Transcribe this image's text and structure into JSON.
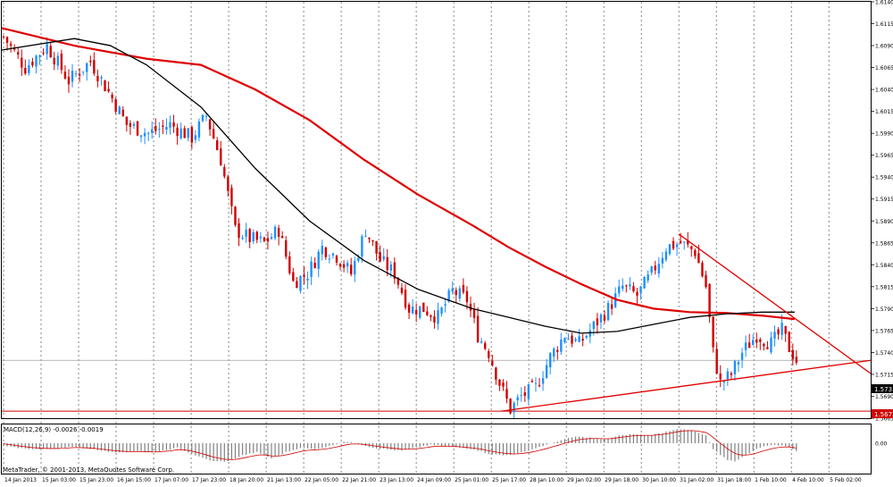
{
  "platform_label": "MetaTrader, © 2001-2013, MetaQuotes Software Corp.",
  "macd_label": "MACD(12,26,9) -0.0026 -0.0019",
  "price_bid_label": "1.5731",
  "price_low_label": "1.5673",
  "colors": {
    "background": "#ffffff",
    "frame": "#000000",
    "bull_candle": "#1e90ff",
    "bear_candle": "#d00000",
    "ma_fast": "#000000",
    "ma_slow": "#e00000",
    "trendline": "#e00000",
    "histogram": "#808080",
    "signal": "#d00000",
    "price_marker": "#d00000"
  },
  "chart_data": [
    {
      "type": "candlestick",
      "ylim": [
        1.5665,
        1.614
      ],
      "y_ticks": [
        "1.6140",
        "1.6115",
        "1.6090",
        "1.6065",
        "1.6040",
        "1.6015",
        "1.5990",
        "1.5965",
        "1.5940",
        "1.5915",
        "1.5890",
        "1.5865",
        "1.5840",
        "1.5815",
        "1.5790",
        "1.5765",
        "1.5740",
        "1.5715",
        "1.5690",
        "1.5665"
      ],
      "x_labels": [
        "14 Jan 2013",
        "15 Jan 03:00",
        "15 Jan 23:00",
        "16 Jan 15:00",
        "17 Jan 07:00",
        "17 Jan 23:00",
        "18 Jan 20:00",
        "21 Jan 13:00",
        "22 Jan 05:00",
        "22 Jan 21:00",
        "23 Jan 13:00",
        "24 Jan 09:00",
        "25 Jan 01:00",
        "25 Jan 17:00",
        "28 Jan 10:00",
        "29 Jan 02:00",
        "29 Jan 18:00",
        "30 Jan 10:00",
        "31 Jan 02:00",
        "31 Jan 18:00",
        "1 Feb 10:00",
        "4 Feb 10:00",
        "5 Feb 02:00"
      ],
      "close_path": [
        [
          0,
          1.61
        ],
        [
          6,
          1.6065
        ],
        [
          12,
          1.609
        ],
        [
          18,
          1.605
        ],
        [
          24,
          1.6072
        ],
        [
          30,
          1.603
        ],
        [
          34,
          1.6
        ],
        [
          40,
          1.599
        ],
        [
          46,
          1.6
        ],
        [
          52,
          1.5985
        ],
        [
          56,
          1.601
        ],
        [
          60,
          1.596
        ],
        [
          64,
          1.588
        ],
        [
          68,
          1.587
        ],
        [
          72,
          1.5865
        ],
        [
          76,
          1.588
        ],
        [
          80,
          1.582
        ],
        [
          84,
          1.583
        ],
        [
          88,
          1.586
        ],
        [
          92,
          1.585
        ],
        [
          96,
          1.583
        ],
        [
          100,
          1.588
        ],
        [
          104,
          1.5845
        ],
        [
          108,
          1.583
        ],
        [
          112,
          1.579
        ],
        [
          116,
          1.579
        ],
        [
          120,
          1.578
        ],
        [
          124,
          1.581
        ],
        [
          128,
          1.58
        ],
        [
          131,
          1.576
        ],
        [
          134,
          1.574
        ],
        [
          137,
          1.5705
        ],
        [
          140,
          1.5675
        ],
        [
          143,
          1.569
        ],
        [
          147,
          1.57
        ],
        [
          151,
          1.5735
        ],
        [
          155,
          1.576
        ],
        [
          159,
          1.575
        ],
        [
          163,
          1.577
        ],
        [
          167,
          1.579
        ],
        [
          171,
          1.5815
        ],
        [
          175,
          1.5805
        ],
        [
          179,
          1.583
        ],
        [
          183,
          1.586
        ],
        [
          187,
          1.5865
        ],
        [
          191,
          1.5855
        ],
        [
          194,
          1.5815
        ],
        [
          196,
          1.574
        ],
        [
          198,
          1.5705
        ],
        [
          201,
          1.5715
        ],
        [
          204,
          1.574
        ],
        [
          208,
          1.576
        ],
        [
          212,
          1.575
        ],
        [
          215,
          1.5765
        ],
        [
          217,
          1.5745
        ],
        [
          219,
          1.5731
        ]
      ],
      "ma_fast": [
        [
          0,
          1.6085
        ],
        [
          20,
          1.6098
        ],
        [
          30,
          1.609
        ],
        [
          40,
          1.6068
        ],
        [
          55,
          1.602
        ],
        [
          70,
          1.595
        ],
        [
          85,
          1.589
        ],
        [
          100,
          1.5845
        ],
        [
          115,
          1.5812
        ],
        [
          130,
          1.579
        ],
        [
          140,
          1.578
        ],
        [
          150,
          1.577
        ],
        [
          160,
          1.5762
        ],
        [
          170,
          1.5764
        ],
        [
          180,
          1.5772
        ],
        [
          190,
          1.578
        ],
        [
          200,
          1.5784
        ],
        [
          210,
          1.5786
        ],
        [
          219,
          1.5786
        ]
      ],
      "ma_slow": [
        [
          0,
          1.611
        ],
        [
          20,
          1.609
        ],
        [
          40,
          1.6075
        ],
        [
          55,
          1.6068
        ],
        [
          70,
          1.604
        ],
        [
          85,
          1.6005
        ],
        [
          100,
          1.596
        ],
        [
          115,
          1.592
        ],
        [
          130,
          1.5885
        ],
        [
          140,
          1.586
        ],
        [
          150,
          1.5838
        ],
        [
          160,
          1.5818
        ],
        [
          170,
          1.58
        ],
        [
          180,
          1.579
        ],
        [
          190,
          1.5786
        ],
        [
          200,
          1.5785
        ],
        [
          210,
          1.5782
        ],
        [
          219,
          1.5778
        ]
      ],
      "trendlines": [
        {
          "from": [
            187,
            1.5875
          ],
          "to": [
            240,
            1.5716
          ]
        },
        {
          "from": [
            138,
            1.5673
          ],
          "to": [
            240,
            1.5731
          ]
        }
      ],
      "bid_level": 1.5731,
      "low_level": 1.5673,
      "grid": "vertical-dashed"
    },
    {
      "type": "histogram",
      "title": "MACD(12,26,9) -0.0026 -0.0019",
      "y_ticks": [
        "0.00"
      ],
      "macd_path": [
        [
          0,
          -0.001
        ],
        [
          6,
          -0.0018
        ],
        [
          12,
          -0.002
        ],
        [
          18,
          -0.0012
        ],
        [
          24,
          -0.0018
        ],
        [
          30,
          -0.003
        ],
        [
          36,
          -0.0028
        ],
        [
          42,
          -0.003
        ],
        [
          48,
          -0.0015
        ],
        [
          54,
          -0.0045
        ],
        [
          58,
          -0.006
        ],
        [
          62,
          -0.006
        ],
        [
          66,
          -0.004
        ],
        [
          70,
          -0.003
        ],
        [
          74,
          -0.005
        ],
        [
          78,
          -0.003
        ],
        [
          82,
          -0.0015
        ],
        [
          86,
          -0.002
        ],
        [
          90,
          -0.001
        ],
        [
          94,
          0.0006
        ],
        [
          98,
          -0.0002
        ],
        [
          102,
          -0.0015
        ],
        [
          106,
          -0.002
        ],
        [
          110,
          -0.0025
        ],
        [
          114,
          -0.0015
        ],
        [
          118,
          -0.0005
        ],
        [
          122,
          -0.001
        ],
        [
          126,
          -0.0015
        ],
        [
          130,
          -0.002
        ],
        [
          134,
          -0.0035
        ],
        [
          138,
          -0.004
        ],
        [
          142,
          -0.0035
        ],
        [
          146,
          -0.002
        ],
        [
          150,
          -0.0005
        ],
        [
          154,
          0.001
        ],
        [
          158,
          0.0022
        ],
        [
          162,
          0.0018
        ],
        [
          166,
          0.0012
        ],
        [
          170,
          0.0025
        ],
        [
          174,
          0.003
        ],
        [
          178,
          0.0025
        ],
        [
          182,
          0.0035
        ],
        [
          186,
          0.0048
        ],
        [
          190,
          0.0042
        ],
        [
          194,
          0.0025
        ],
        [
          196,
          -0.002
        ],
        [
          198,
          -0.004
        ],
        [
          200,
          -0.0055
        ],
        [
          202,
          -0.006
        ],
        [
          205,
          -0.004
        ],
        [
          208,
          -0.0018
        ],
        [
          212,
          -0.0005
        ],
        [
          215,
          -0.0008
        ],
        [
          217,
          -0.0012
        ],
        [
          219,
          -0.0026
        ]
      ]
    }
  ]
}
